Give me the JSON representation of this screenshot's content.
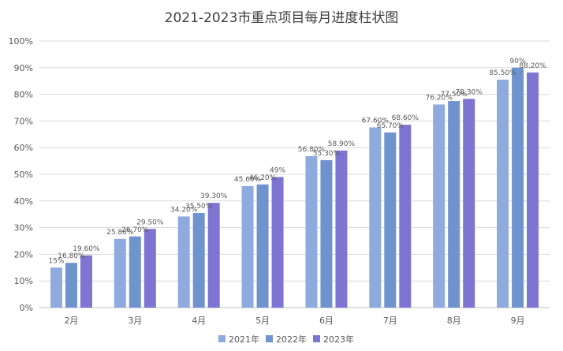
{
  "chart_data": {
    "type": "bar",
    "title": "2021-2023市重点项目每月进度柱状图",
    "xlabel": "",
    "ylabel": "",
    "ylim": [
      0,
      100
    ],
    "yticks": [
      0,
      10,
      20,
      30,
      40,
      50,
      60,
      70,
      80,
      90,
      100
    ],
    "ytick_suffix": "%",
    "grid": true,
    "legend_position": "bottom",
    "categories": [
      "2月",
      "3月",
      "4月",
      "5月",
      "6月",
      "7月",
      "8月",
      "9月"
    ],
    "series": [
      {
        "name": "2021年",
        "color": "#8faadc",
        "values": [
          15,
          25.8,
          34.2,
          45.6,
          56.8,
          67.6,
          76.2,
          85.5
        ],
        "labels": [
          "15%",
          "25.80%",
          "34.20%",
          "45.60%",
          "56.80%",
          "67.60%",
          "76.20%",
          "85.50%"
        ]
      },
      {
        "name": "2022年",
        "color": "#6f94cd",
        "values": [
          16.8,
          26.7,
          35.5,
          46.2,
          55.3,
          65.7,
          77.5,
          90
        ],
        "labels": [
          "16.80%",
          "26.70%",
          "35.50%",
          "46.20%",
          "55.30%",
          "65.70%",
          "77.50%",
          "90%"
        ]
      },
      {
        "name": "2023年",
        "color": "#7e74d2",
        "values": [
          19.6,
          29.5,
          39.3,
          49,
          58.9,
          68.6,
          78.3,
          88.2
        ],
        "labels": [
          "19.60%",
          "29.50%",
          "39.30%",
          "49%",
          "58.90%",
          "68.60%",
          "78.30%",
          "88.20%"
        ]
      }
    ]
  }
}
